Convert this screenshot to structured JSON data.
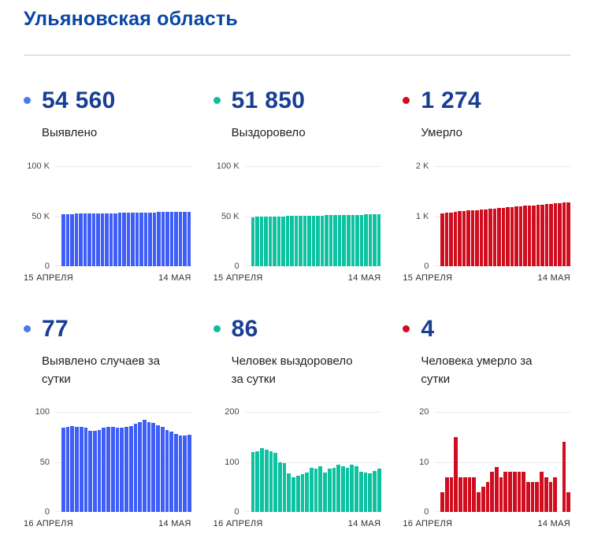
{
  "page": {
    "title": "Ульяновская область"
  },
  "colors": {
    "confirmed": "#3e5ef7",
    "recovered": "#0cc2a0",
    "deaths": "#d00d1e",
    "title_blue": "#0b46a4",
    "value_blue": "#1a3e94"
  },
  "cards": [
    {
      "value": "54 560",
      "label": "Выявлено",
      "dot_color": "#4a79f4"
    },
    {
      "value": "51 850",
      "label": "Выздоровело",
      "dot_color": "#12bc9a"
    },
    {
      "value": "1 274",
      "label": "Умерло",
      "dot_color": "#d00d1e"
    },
    {
      "value": "77",
      "label": "Выявлено случаев за сутки",
      "dot_color": "#4a79f4"
    },
    {
      "value": "86",
      "label": "Человек выздоровело за сутки",
      "dot_color": "#12bc9a"
    },
    {
      "value": "4",
      "label": "Человека умерло за сутки",
      "dot_color": "#d00d1e"
    }
  ],
  "chart_data": [
    {
      "type": "bar",
      "title": "Выявлено (всего)",
      "color": "#3e5ef7",
      "ymax": 100000,
      "yticks": [
        "100 K",
        "50 K",
        "0"
      ],
      "xlabels": [
        "15 АПРЕЛЯ",
        "14 МАЯ"
      ],
      "values": [
        52128,
        52212,
        52297,
        52383,
        52468,
        52553,
        52637,
        52718,
        52799,
        52881,
        52965,
        53050,
        53135,
        53219,
        53303,
        53388,
        53474,
        53562,
        53652,
        53744,
        53834,
        53923,
        54010,
        54095,
        54177,
        54257,
        54335,
        54411,
        54483,
        54560
      ]
    },
    {
      "type": "bar",
      "title": "Выздоровело (всего)",
      "color": "#0cc2a0",
      "ymax": 100000,
      "yticks": [
        "100 K",
        "50 K",
        "0"
      ],
      "xlabels": [
        "15 АПРЕЛЯ",
        "14 МАЯ"
      ],
      "values": [
        49184,
        49304,
        49424,
        49546,
        49670,
        49792,
        49910,
        50010,
        50107,
        50184,
        50254,
        50326,
        50401,
        50479,
        50567,
        50653,
        50745,
        50823,
        50909,
        50998,
        51093,
        51184,
        51273,
        51368,
        51460,
        51540,
        51618,
        51695,
        51764,
        51850
      ]
    },
    {
      "type": "bar",
      "title": "Умерло (всего)",
      "color": "#d00d1e",
      "ymax": 2000,
      "yticks": [
        "2 K",
        "1 K",
        "0"
      ],
      "xlabels": [
        "15 АПРЕЛЯ",
        "14 МАЯ"
      ],
      "values": [
        1062,
        1069,
        1076,
        1091,
        1098,
        1105,
        1112,
        1119,
        1123,
        1128,
        1134,
        1142,
        1151,
        1158,
        1166,
        1174,
        1182,
        1190,
        1198,
        1206,
        1212,
        1218,
        1226,
        1233,
        1239,
        1246,
        1253,
        1260,
        1270,
        1274
      ]
    },
    {
      "type": "bar",
      "title": "Выявлено случаев за сутки",
      "color": "#3e5ef7",
      "ymax": 100,
      "yticks": [
        "100",
        "50",
        "0"
      ],
      "xlabels": [
        "16 АПРЕЛЯ",
        "14 МАЯ"
      ],
      "values": [
        84,
        85,
        86,
        85,
        85,
        84,
        81,
        81,
        82,
        84,
        85,
        85,
        84,
        84,
        85,
        86,
        88,
        90,
        92,
        90,
        89,
        87,
        85,
        82,
        80,
        78,
        76,
        76,
        77
      ]
    },
    {
      "type": "bar",
      "title": "Человек выздоровело за сутки",
      "color": "#0cc2a0",
      "ymax": 200,
      "yticks": [
        "200",
        "100",
        "0"
      ],
      "xlabels": [
        "16 АПРЕЛЯ",
        "14 МАЯ"
      ],
      "values": [
        120,
        122,
        127,
        124,
        122,
        118,
        100,
        97,
        77,
        70,
        72,
        75,
        78,
        88,
        86,
        92,
        78,
        86,
        89,
        95,
        91,
        89,
        95,
        92,
        80,
        78,
        77,
        82,
        86
      ]
    },
    {
      "type": "bar",
      "title": "Человека умерло за сутки",
      "color": "#d00d1e",
      "ymax": 20,
      "yticks": [
        "20",
        "10",
        "0"
      ],
      "xlabels": [
        "16 АПРЕЛЯ",
        "14 МАЯ"
      ],
      "values": [
        4,
        7,
        7,
        15,
        7,
        7,
        7,
        7,
        4,
        5,
        6,
        8,
        9,
        7,
        8,
        8,
        8,
        8,
        8,
        6,
        6,
        6,
        8,
        7,
        6,
        7,
        0,
        14,
        4
      ]
    }
  ]
}
